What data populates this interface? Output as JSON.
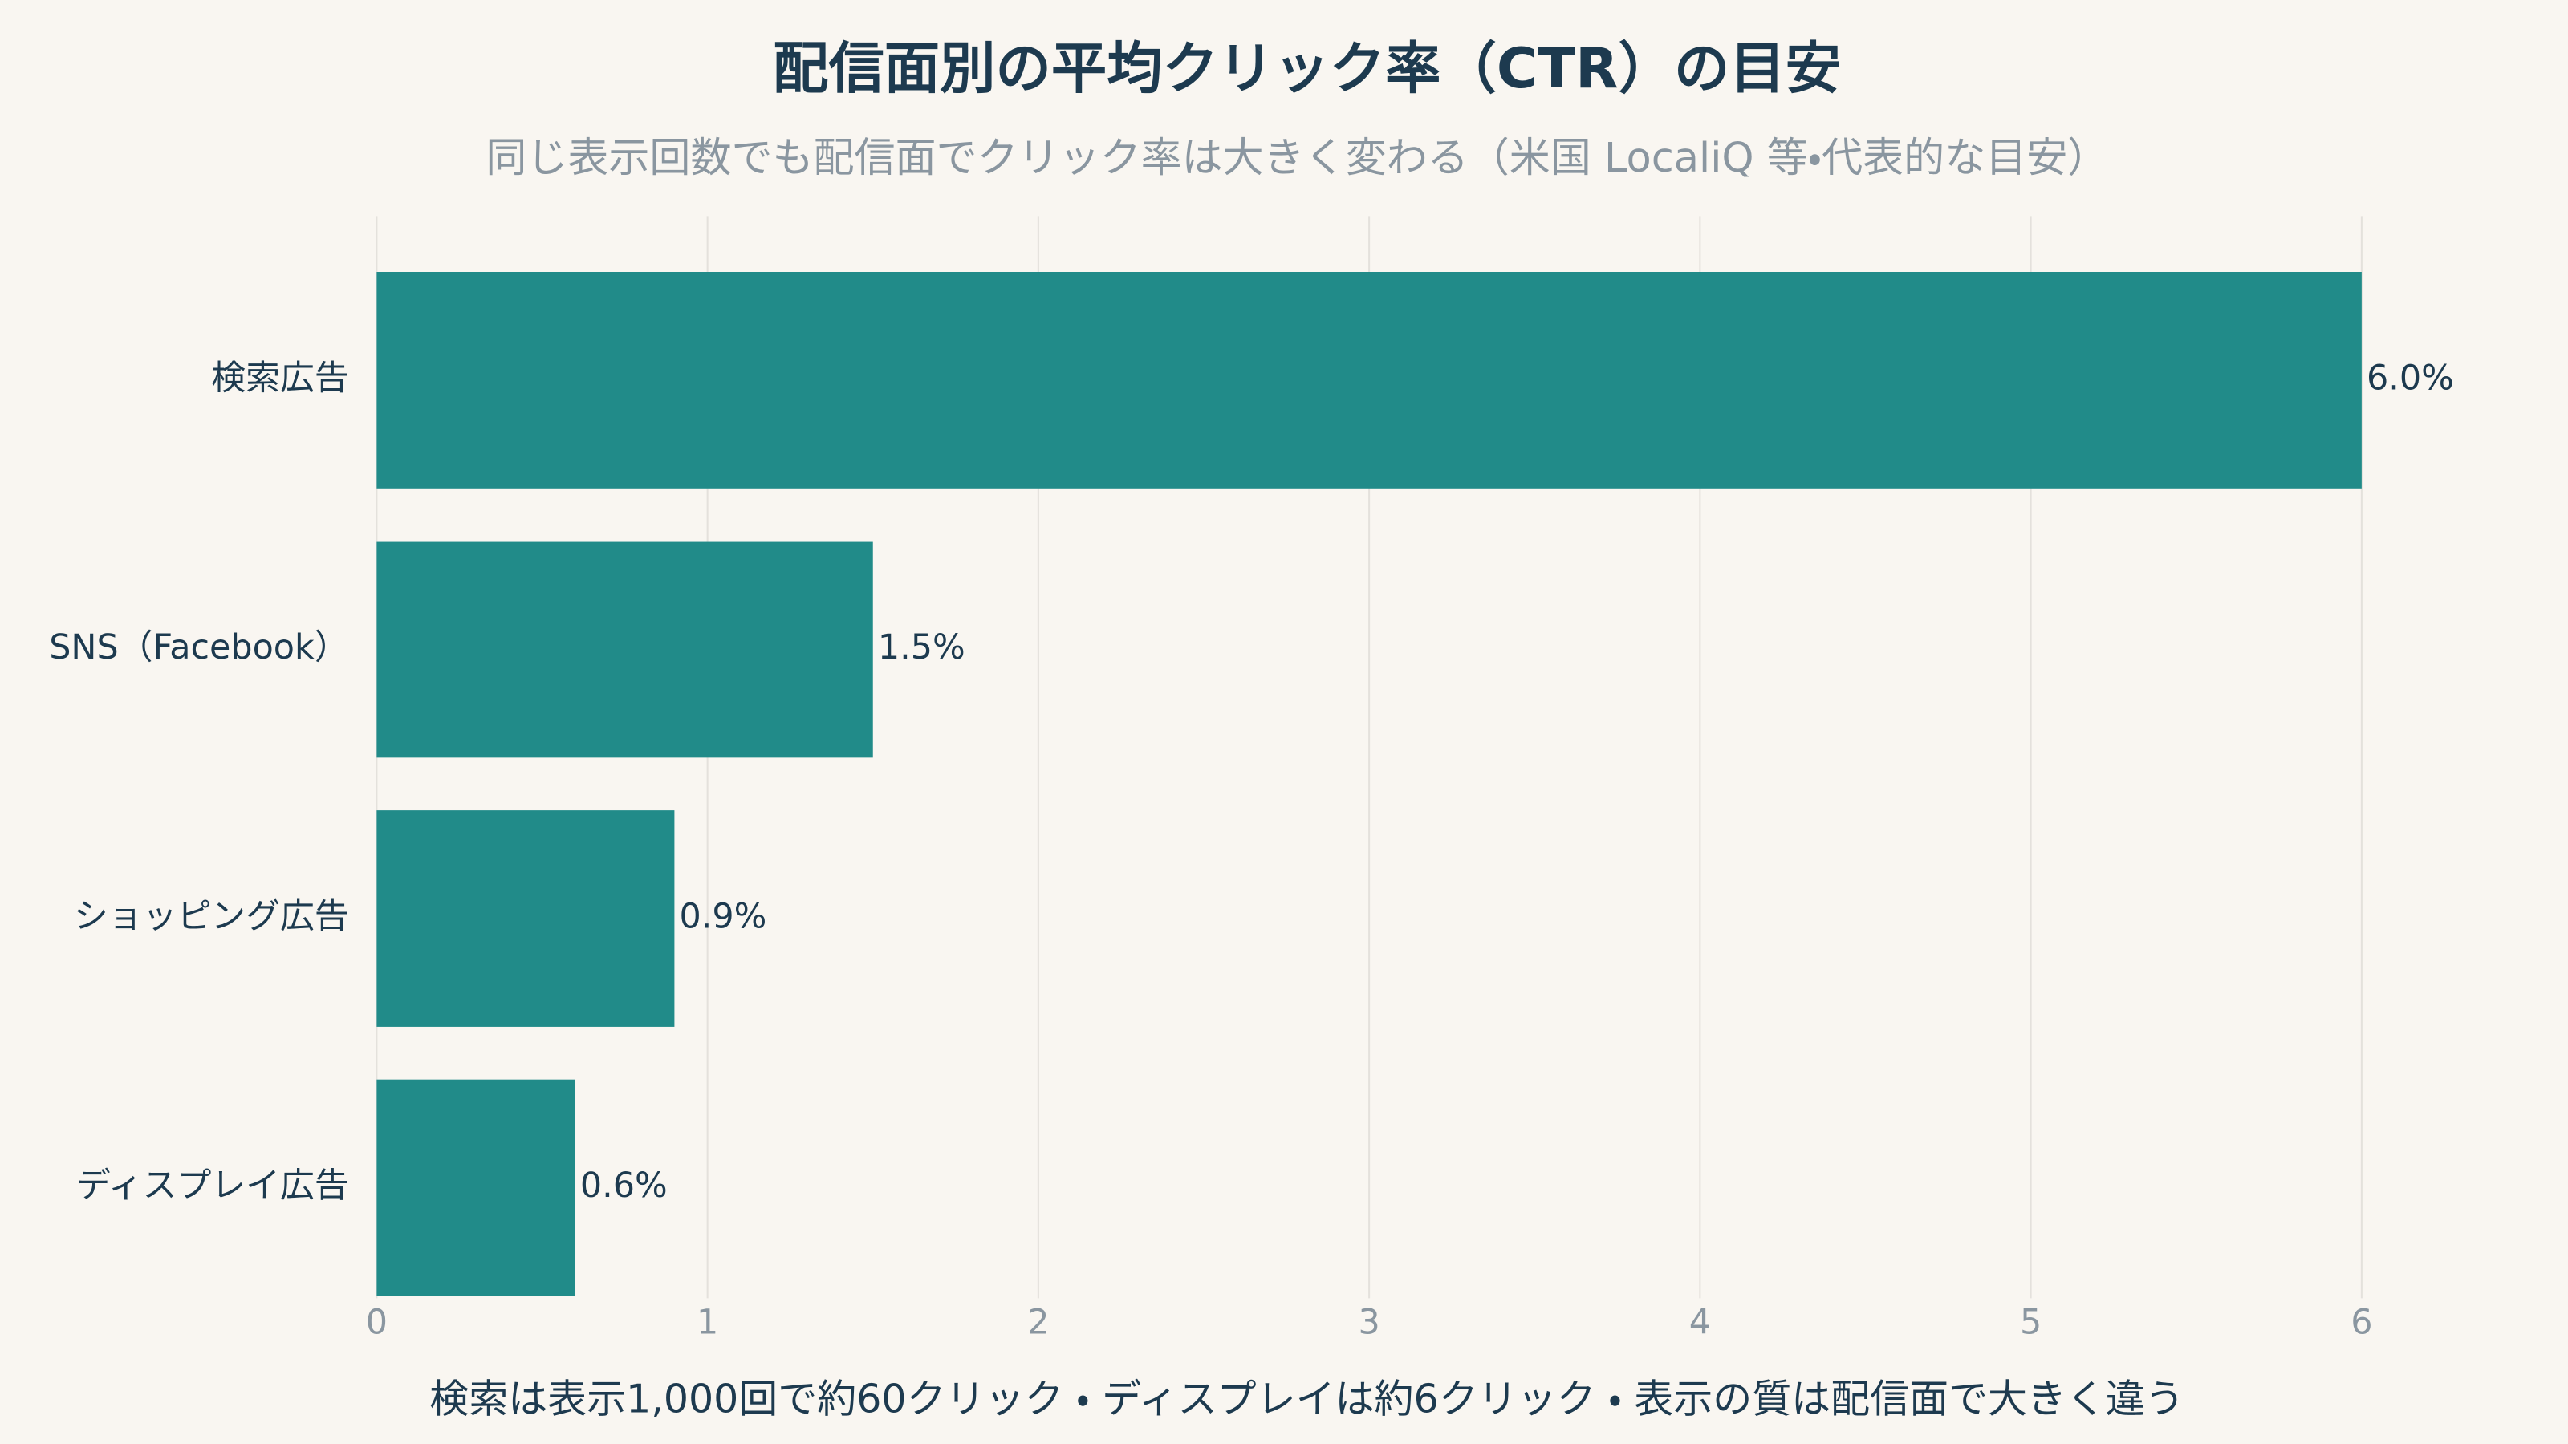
{
  "chart_data": {
    "type": "barh",
    "title": "配信面別の平均クリック率（CTR）の目安",
    "subtitle": "同じ表示回数でも配信面でクリック率は大きく変わる（米国 LocaliQ 等・代表的な目安）",
    "categories": [
      "検索広告",
      "SNS（Facebook）",
      "ショッピング広告",
      "ディスプレイ広告"
    ],
    "values": [
      6.0,
      1.5,
      0.9,
      0.6
    ],
    "value_labels": [
      "6.0%",
      "1.5%",
      "0.9%",
      "0.6%"
    ],
    "color": "#218b89",
    "xlim": [
      0,
      6
    ],
    "xticks": [
      0,
      1,
      2,
      3,
      4,
      5,
      6
    ],
    "grid": true,
    "caption": "検索は表示1,000回で約60クリック ・ ディスプレイは約6クリック ・ 表示の質は配信面で大きく違う"
  }
}
